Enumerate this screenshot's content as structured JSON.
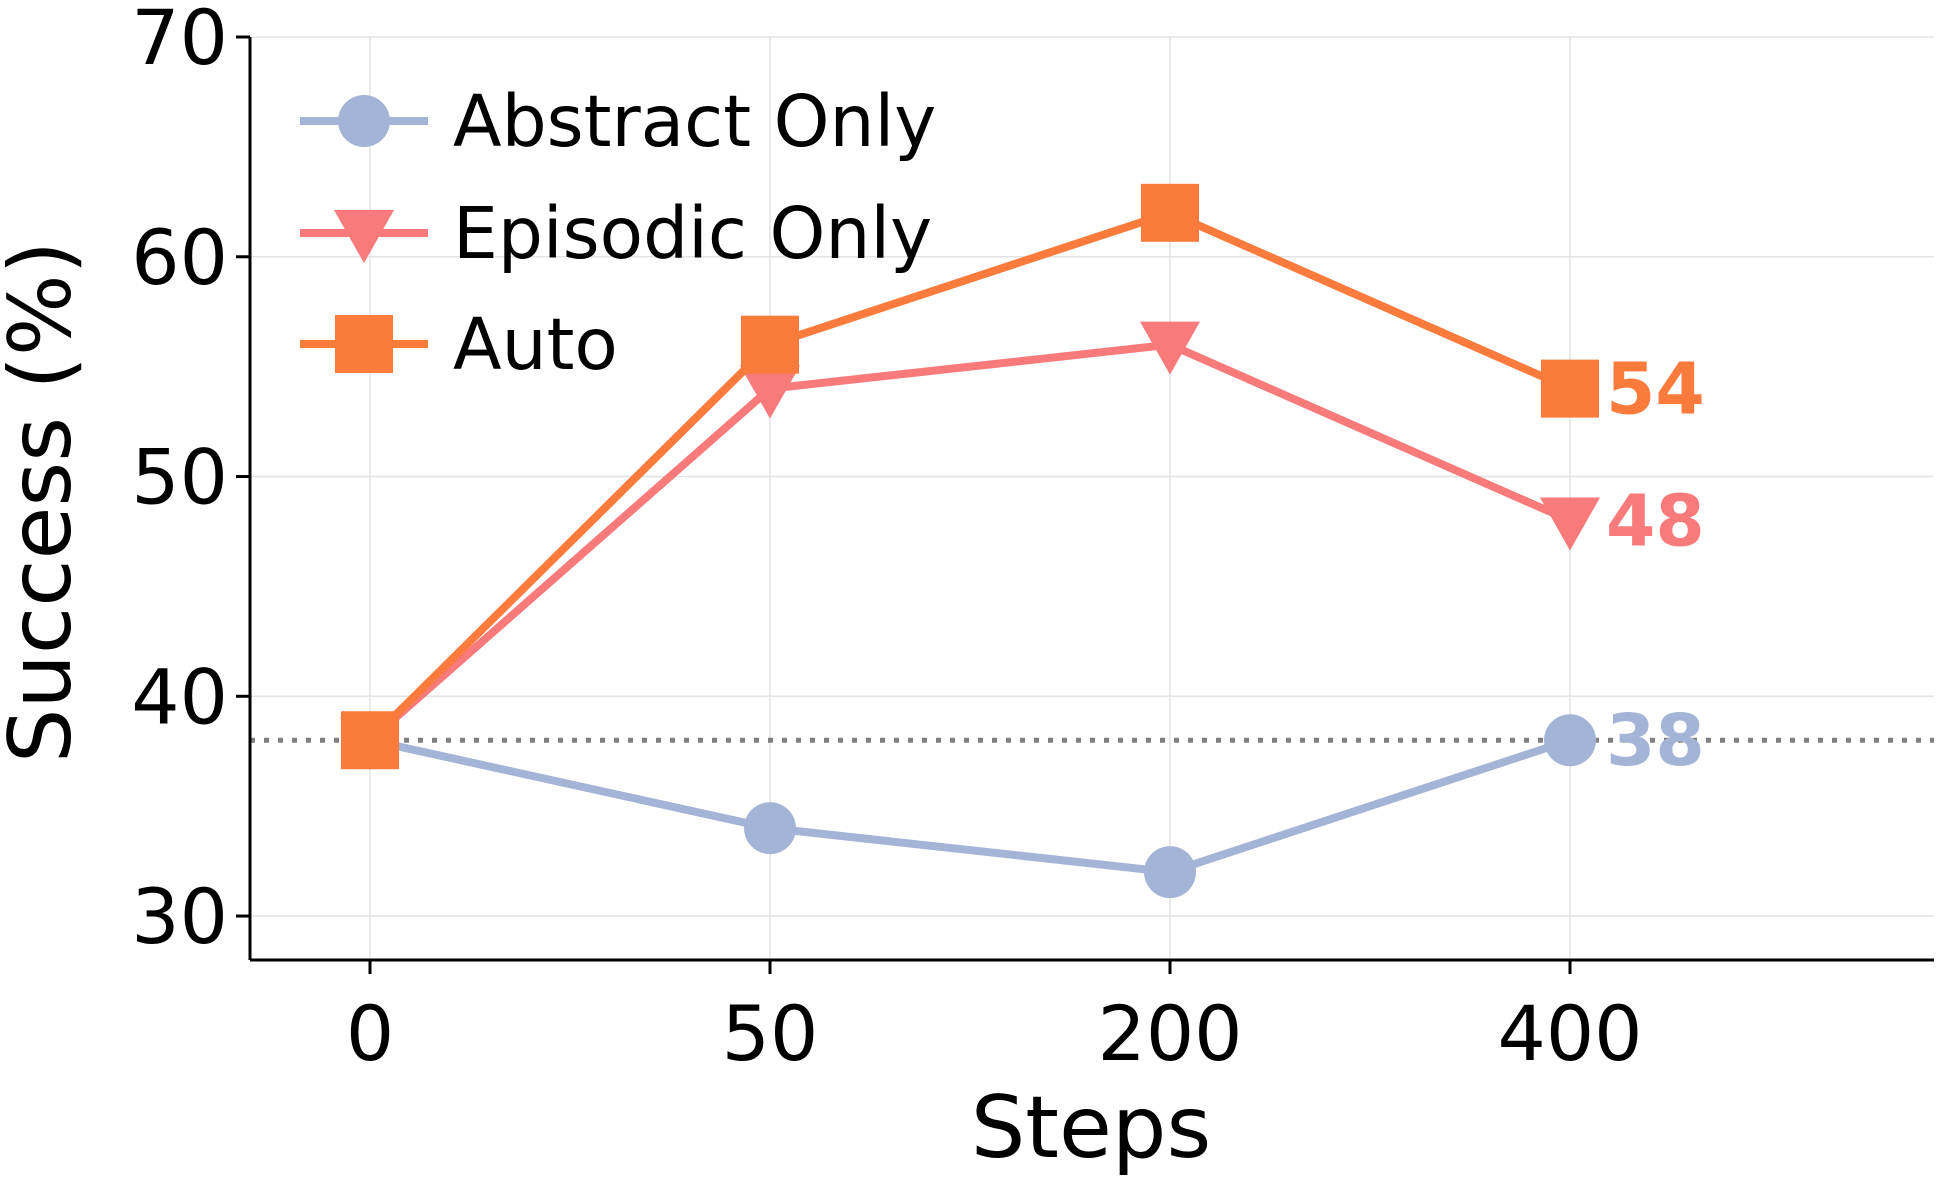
{
  "chart_data": {
    "type": "line",
    "title": "",
    "xlabel": "Steps",
    "ylabel": "Success (%)",
    "categories": [
      "0",
      "50",
      "200",
      "400"
    ],
    "ylim": [
      28,
      70
    ],
    "yticks": [
      30,
      40,
      50,
      60,
      70
    ],
    "grid": true,
    "legend_position": "top-left",
    "reference_line": {
      "y": 38,
      "style": "dotted",
      "color": "#808080"
    },
    "series": [
      {
        "name": "Abstract Only",
        "values": [
          38,
          34,
          32,
          38
        ],
        "color": "#A4B4D6",
        "marker": "circle",
        "end_label": "38"
      },
      {
        "name": "Episodic Only",
        "values": [
          38,
          54,
          56,
          48
        ],
        "color": "#F87A7A",
        "marker": "triangle-down",
        "end_label": "48"
      },
      {
        "name": "Auto",
        "values": [
          38,
          56,
          62,
          54
        ],
        "color": "#FB7B3C",
        "marker": "square",
        "end_label": "54"
      }
    ]
  }
}
